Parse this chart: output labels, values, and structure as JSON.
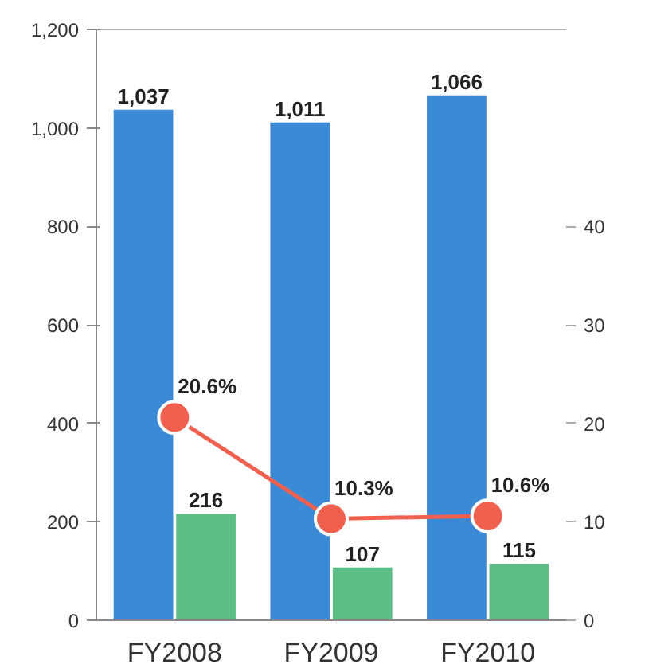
{
  "chart_data": {
    "type": "bar",
    "categories": [
      "FY2008",
      "FY2009",
      "FY2010"
    ],
    "series": [
      {
        "color": "#3a8ad6",
        "values": [
          1037,
          1011,
          1066
        ],
        "value_labels": [
          "1,037",
          "1,011",
          "1,066"
        ]
      },
      {
        "color": "#5dbd85",
        "values": [
          216,
          107,
          115
        ],
        "value_labels": [
          "216",
          "107",
          "115"
        ]
      },
      {
        "type": "line",
        "axis": "y2",
        "color": "#f0604f",
        "marker": "circle",
        "values": [
          20.6,
          10.3,
          10.6
        ],
        "value_labels": [
          "20.6%",
          "10.3%",
          "10.6%"
        ]
      }
    ],
    "ylim": [
      0,
      1200
    ],
    "yticks": [
      0,
      200,
      400,
      600,
      800,
      {
        "value": 1000,
        "label": "1,000"
      },
      {
        "value": 1200,
        "label": "1,200"
      }
    ],
    "y2lim": [
      0,
      60
    ],
    "y2ticks": [
      0,
      10,
      20,
      30,
      40
    ],
    "grid": false
  }
}
